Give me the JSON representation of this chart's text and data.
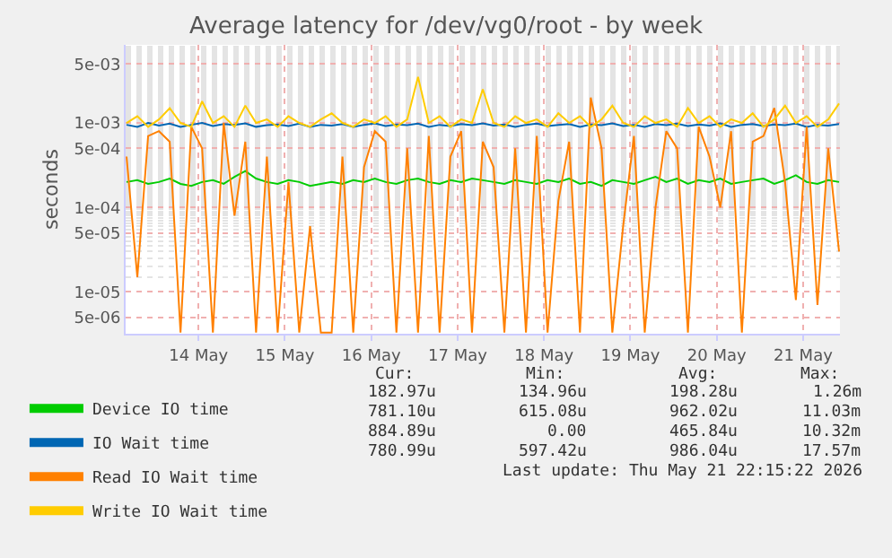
{
  "chart_data": {
    "type": "line",
    "title": "Average latency for /dev/vg0/root - by week",
    "ylabel": "seconds",
    "log": "y",
    "grid": true,
    "legend": "bottom left",
    "marker": "none",
    "line_style": "solid",
    "xlim": [
      "2026-05-13T15:45",
      "2026-05-21T22:15"
    ],
    "xticks": [
      {
        "value": "2026-05-14T12:00",
        "label": "14 May"
      },
      {
        "value": "2026-05-15T12:00",
        "label": "15 May"
      },
      {
        "value": "2026-05-16T12:00",
        "label": "16 May"
      },
      {
        "value": "2026-05-17T12:00",
        "label": "17 May"
      },
      {
        "value": "2026-05-18T12:00",
        "label": "18 May"
      },
      {
        "value": "2026-05-19T12:00",
        "label": "19 May"
      },
      {
        "value": "2026-05-20T12:00",
        "label": "20 May"
      },
      {
        "value": "2026-05-21T12:00",
        "label": "21 May"
      }
    ],
    "ylim": [
      3.2e-06,
      0.0084
    ],
    "yticks": [
      {
        "value": 5e-06,
        "label": "5e-06"
      },
      {
        "value": 1e-05,
        "label": "1e-05"
      },
      {
        "value": 5e-05,
        "label": "5e-05"
      },
      {
        "value": 0.0001,
        "label": "1e-04"
      },
      {
        "value": 0.0005,
        "label": "5e-04"
      },
      {
        "value": 0.001,
        "label": "1e-03"
      },
      {
        "value": 0.005,
        "label": "5e-03"
      }
    ],
    "x": [
      "2026-05-13T16:00",
      "2026-05-13T19:00",
      "2026-05-13T22:00",
      "2026-05-14T01:00",
      "2026-05-14T04:00",
      "2026-05-14T07:00",
      "2026-05-14T10:00",
      "2026-05-14T13:00",
      "2026-05-14T16:00",
      "2026-05-14T19:00",
      "2026-05-14T22:00",
      "2026-05-15T01:00",
      "2026-05-15T04:00",
      "2026-05-15T07:00",
      "2026-05-15T10:00",
      "2026-05-15T13:00",
      "2026-05-15T16:00",
      "2026-05-15T19:00",
      "2026-05-15T22:00",
      "2026-05-16T01:00",
      "2026-05-16T04:00",
      "2026-05-16T07:00",
      "2026-05-16T10:00",
      "2026-05-16T13:00",
      "2026-05-16T16:00",
      "2026-05-16T19:00",
      "2026-05-16T22:00",
      "2026-05-17T01:00",
      "2026-05-17T04:00",
      "2026-05-17T07:00",
      "2026-05-17T10:00",
      "2026-05-17T13:00",
      "2026-05-17T16:00",
      "2026-05-17T19:00",
      "2026-05-17T22:00",
      "2026-05-18T01:00",
      "2026-05-18T04:00",
      "2026-05-18T07:00",
      "2026-05-18T10:00",
      "2026-05-18T13:00",
      "2026-05-18T16:00",
      "2026-05-18T19:00",
      "2026-05-18T22:00",
      "2026-05-19T01:00",
      "2026-05-19T04:00",
      "2026-05-19T07:00",
      "2026-05-19T10:00",
      "2026-05-19T13:00",
      "2026-05-19T16:00",
      "2026-05-19T19:00",
      "2026-05-19T22:00",
      "2026-05-20T01:00",
      "2026-05-20T04:00",
      "2026-05-20T07:00",
      "2026-05-20T10:00",
      "2026-05-20T13:00",
      "2026-05-20T16:00",
      "2026-05-20T19:00",
      "2026-05-20T22:00",
      "2026-05-21T01:00",
      "2026-05-21T04:00",
      "2026-05-21T07:00",
      "2026-05-21T10:00",
      "2026-05-21T13:00",
      "2026-05-21T16:00",
      "2026-05-21T19:00",
      "2026-05-21T22:00"
    ],
    "series": [
      {
        "name": "Device IO time",
        "color": "#00cc00",
        "values": [
          0.0002,
          0.00021,
          0.00019,
          0.0002,
          0.00022,
          0.00019,
          0.00018,
          0.0002,
          0.00021,
          0.00019,
          0.00023,
          0.00027,
          0.00022,
          0.0002,
          0.00019,
          0.00021,
          0.0002,
          0.00018,
          0.00019,
          0.0002,
          0.00019,
          0.00021,
          0.0002,
          0.00022,
          0.0002,
          0.00019,
          0.00021,
          0.00022,
          0.0002,
          0.00019,
          0.00021,
          0.0002,
          0.00022,
          0.00021,
          0.0002,
          0.00019,
          0.00021,
          0.0002,
          0.00019,
          0.00021,
          0.0002,
          0.00022,
          0.00019,
          0.0002,
          0.00018,
          0.00021,
          0.0002,
          0.00019,
          0.00021,
          0.00023,
          0.0002,
          0.00022,
          0.00019,
          0.00021,
          0.0002,
          0.00022,
          0.00019,
          0.0002,
          0.00021,
          0.00022,
          0.00019,
          0.00021,
          0.00024,
          0.0002,
          0.00019,
          0.00021,
          0.0002
        ]
      },
      {
        "name": "IO Wait time",
        "color": "#0066b3",
        "values": [
          0.00095,
          0.0009,
          0.001,
          0.00093,
          0.00098,
          0.0009,
          0.00095,
          0.001,
          0.00092,
          0.00097,
          0.00095,
          0.00099,
          0.0009,
          0.00094,
          0.00096,
          0.00092,
          0.00098,
          0.0009,
          0.00095,
          0.00093,
          0.00097,
          0.0009,
          0.00095,
          0.00099,
          0.00092,
          0.00096,
          0.00094,
          0.00098,
          0.0009,
          0.00095,
          0.00092,
          0.00097,
          0.00094,
          0.00099,
          0.00093,
          0.00096,
          0.0009,
          0.00095,
          0.00098,
          0.00092,
          0.00095,
          0.00097,
          0.0009,
          0.00096,
          0.00094,
          0.00099,
          0.00092,
          0.00095,
          0.0009,
          0.00097,
          0.00094,
          0.00098,
          0.00092,
          0.00096,
          0.00093,
          0.00099,
          0.0009,
          0.00095,
          0.00097,
          0.00092,
          0.00096,
          0.00094,
          0.00098,
          0.0009,
          0.00095,
          0.00093,
          0.00097
        ]
      },
      {
        "name": "Read IO Wait time",
        "color": "#ff8000",
        "values": [
          0.0004,
          1.5e-05,
          0.0007,
          0.0008,
          0.0006,
          3.3e-06,
          0.0009,
          0.0005,
          3.3e-06,
          0.001,
          8e-05,
          0.0006,
          3.3e-06,
          0.0004,
          3.3e-06,
          0.0002,
          3.3e-06,
          6e-05,
          3.3e-06,
          3.3e-06,
          0.0004,
          3.3e-06,
          0.0003,
          0.0008,
          0.0006,
          3.3e-06,
          0.0005,
          3.3e-06,
          0.0007,
          3.3e-06,
          0.0004,
          0.0008,
          3.3e-06,
          0.0006,
          0.0003,
          3.3e-06,
          0.0005,
          3.3e-06,
          0.0007,
          3.3e-06,
          0.00012,
          0.0006,
          3.3e-06,
          0.002,
          0.0005,
          3.3e-06,
          6e-05,
          0.0007,
          3.3e-06,
          0.0001,
          0.0008,
          0.0005,
          3.3e-06,
          0.0009,
          0.0004,
          0.0001,
          0.0008,
          3.3e-06,
          0.0006,
          0.0007,
          0.0015,
          0.0002,
          8e-06,
          0.0009,
          7e-06,
          0.0005,
          3e-05
        ]
      },
      {
        "name": "Write IO Wait time",
        "color": "#ffcc00",
        "values": [
          0.001,
          0.0012,
          0.0009,
          0.0011,
          0.0015,
          0.001,
          0.0009,
          0.0018,
          0.001,
          0.0012,
          0.0009,
          0.0016,
          0.001,
          0.0011,
          0.0009,
          0.0012,
          0.001,
          0.0009,
          0.0011,
          0.0013,
          0.001,
          0.0009,
          0.0011,
          0.001,
          0.0012,
          0.0009,
          0.0011,
          0.0035,
          0.001,
          0.0012,
          0.0009,
          0.0011,
          0.001,
          0.0025,
          0.001,
          0.0009,
          0.0012,
          0.001,
          0.0011,
          0.0009,
          0.0013,
          0.001,
          0.0012,
          0.0009,
          0.0011,
          0.0016,
          0.001,
          0.0009,
          0.0012,
          0.001,
          0.0011,
          0.0009,
          0.0015,
          0.001,
          0.0012,
          0.0009,
          0.0011,
          0.001,
          0.0013,
          0.0009,
          0.0011,
          0.0016,
          0.001,
          0.0012,
          0.0009,
          0.0011,
          0.0017
        ]
      }
    ],
    "annotations": [
      "Cur:",
      "Min:",
      "Avg:",
      "Max:",
      "182.97u",
      "134.96u",
      "198.28u",
      "1.26m",
      "781.10u",
      "615.08u",
      "962.02u",
      "11.03m",
      "884.89u",
      "0.00",
      "465.84u",
      "10.32m",
      "780.99u",
      "597.42u",
      "986.04u",
      "17.57m",
      "Last update: Thu May 21 22:15:22 2026"
    ]
  }
}
